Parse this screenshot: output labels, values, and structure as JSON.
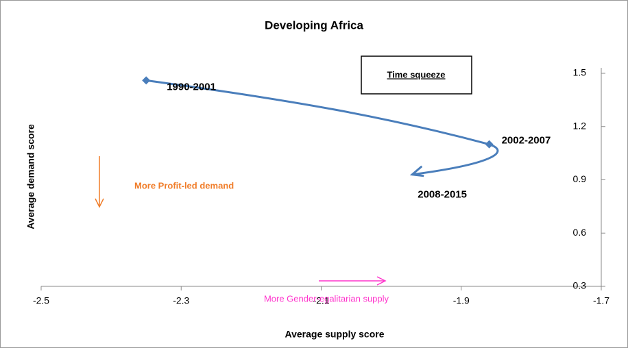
{
  "chart_data": {
    "type": "line",
    "title": "Developing Africa",
    "x_label": "Average supply score",
    "y_label": "Average demand score",
    "x": [
      -2.35,
      -1.86,
      -1.97
    ],
    "values": [
      1.46,
      1.1,
      0.93
    ],
    "point_labels": [
      "1990-2001",
      "2002-2007",
      "2008-2015"
    ],
    "color": "#4a7ebb",
    "annotations": [
      {
        "text": "Time squeeze",
        "color": "#000000"
      },
      {
        "text": "More Profit-led demand",
        "color": "#f07c28"
      },
      {
        "text": "More Gender-egalitarian supply",
        "color": "#ff33cc"
      }
    ],
    "xlim": [
      -2.5,
      -1.7
    ],
    "xticks": [
      -2.5,
      -2.3,
      -2.1,
      -1.9,
      -1.7
    ],
    "ylim": [
      0.3,
      1.5
    ],
    "yticks": [
      0.3,
      0.6,
      0.9,
      1.2,
      1.5
    ]
  }
}
